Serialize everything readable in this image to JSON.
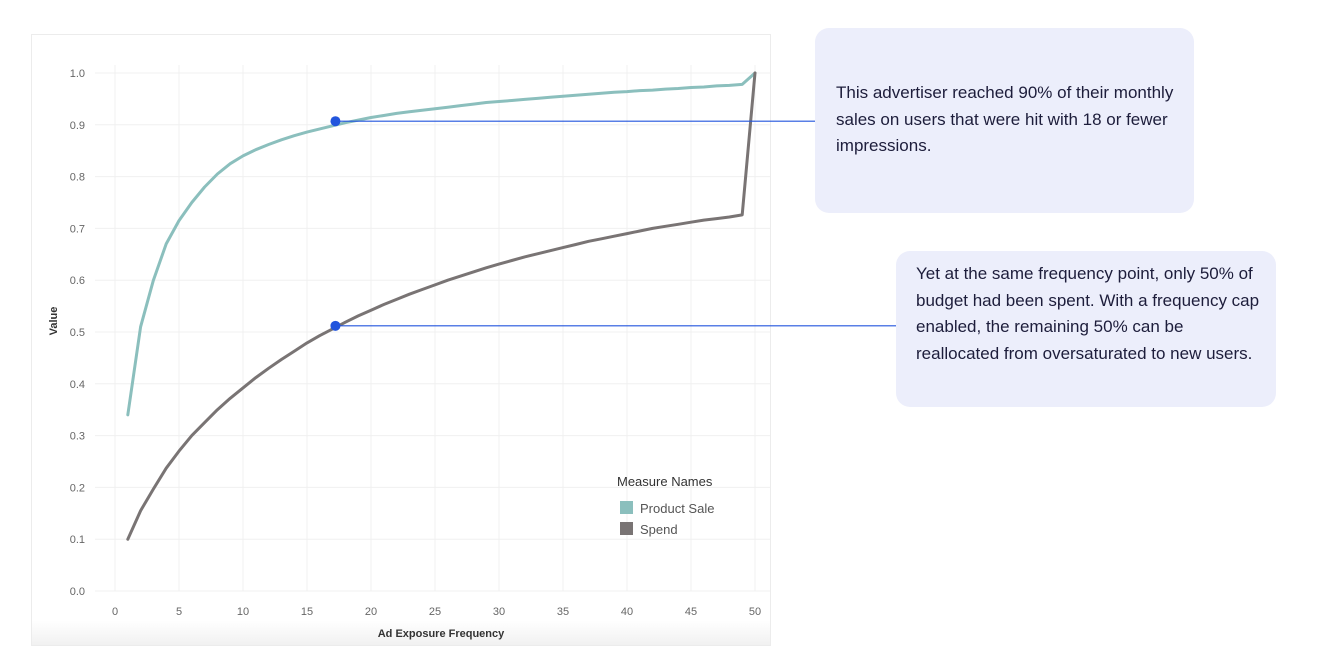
{
  "chart_data": {
    "type": "line",
    "xlabel": "Ad Exposure Frequency",
    "ylabel": "Value",
    "xlim": [
      0,
      50
    ],
    "ylim": [
      0,
      1.0
    ],
    "x_ticks": [
      0,
      5,
      10,
      15,
      20,
      25,
      30,
      35,
      40,
      45,
      50
    ],
    "y_ticks": [
      "0.0",
      "0.1",
      "0.2",
      "0.3",
      "0.4",
      "0.5",
      "0.6",
      "0.7",
      "0.8",
      "0.9",
      "1.0"
    ],
    "grid": true,
    "legend": {
      "title": "Measure Names",
      "placement": "bottom-right"
    },
    "series": [
      {
        "name": "Product Sale",
        "color": "#8bbfbd",
        "x": [
          1,
          2,
          3,
          4,
          5,
          6,
          7,
          8,
          9,
          10,
          11,
          12,
          13,
          14,
          15,
          16,
          17,
          18,
          19,
          20,
          21,
          22,
          23,
          24,
          25,
          26,
          27,
          28,
          29,
          30,
          31,
          32,
          33,
          34,
          35,
          36,
          37,
          38,
          39,
          40,
          41,
          42,
          43,
          44,
          45,
          46,
          47,
          48,
          49,
          50
        ],
        "values": [
          0.34,
          0.51,
          0.6,
          0.67,
          0.715,
          0.75,
          0.78,
          0.805,
          0.825,
          0.84,
          0.852,
          0.862,
          0.871,
          0.879,
          0.886,
          0.892,
          0.898,
          0.904,
          0.909,
          0.914,
          0.918,
          0.922,
          0.925,
          0.928,
          0.931,
          0.934,
          0.937,
          0.94,
          0.943,
          0.945,
          0.947,
          0.949,
          0.951,
          0.953,
          0.955,
          0.957,
          0.959,
          0.961,
          0.963,
          0.964,
          0.966,
          0.967,
          0.969,
          0.97,
          0.972,
          0.973,
          0.975,
          0.976,
          0.978,
          1.0
        ]
      },
      {
        "name": "Spend",
        "color": "#797474",
        "x": [
          1,
          2,
          3,
          4,
          5,
          6,
          7,
          8,
          9,
          10,
          11,
          12,
          13,
          14,
          15,
          16,
          17,
          18,
          19,
          20,
          21,
          22,
          23,
          24,
          25,
          26,
          27,
          28,
          29,
          30,
          31,
          32,
          33,
          34,
          35,
          36,
          37,
          38,
          39,
          40,
          41,
          42,
          43,
          44,
          45,
          46,
          47,
          48,
          49,
          50
        ],
        "values": [
          0.1,
          0.155,
          0.197,
          0.237,
          0.27,
          0.3,
          0.325,
          0.35,
          0.372,
          0.392,
          0.412,
          0.43,
          0.447,
          0.463,
          0.479,
          0.493,
          0.506,
          0.519,
          0.531,
          0.542,
          0.553,
          0.563,
          0.573,
          0.582,
          0.591,
          0.6,
          0.608,
          0.616,
          0.624,
          0.631,
          0.638,
          0.645,
          0.651,
          0.657,
          0.663,
          0.669,
          0.675,
          0.68,
          0.685,
          0.69,
          0.695,
          0.7,
          0.704,
          0.708,
          0.712,
          0.716,
          0.719,
          0.722,
          0.726,
          1.0
        ]
      }
    ],
    "annotations": [
      {
        "x": 17.3,
        "y": 0.905,
        "series": "Product Sale",
        "color": "#2255dd"
      },
      {
        "x": 17.3,
        "y": 0.51,
        "series": "Spend",
        "color": "#2255dd"
      }
    ]
  },
  "callouts": [
    {
      "text": "This advertiser reached 90% of their monthly sales on users that were hit with 18 or fewer impressions."
    },
    {
      "text": "Yet at the same frequency point, only 50% of budget had been spent. With a frequency cap enabled, the remaining 50% can be reallocated from oversaturated to new users."
    }
  ]
}
